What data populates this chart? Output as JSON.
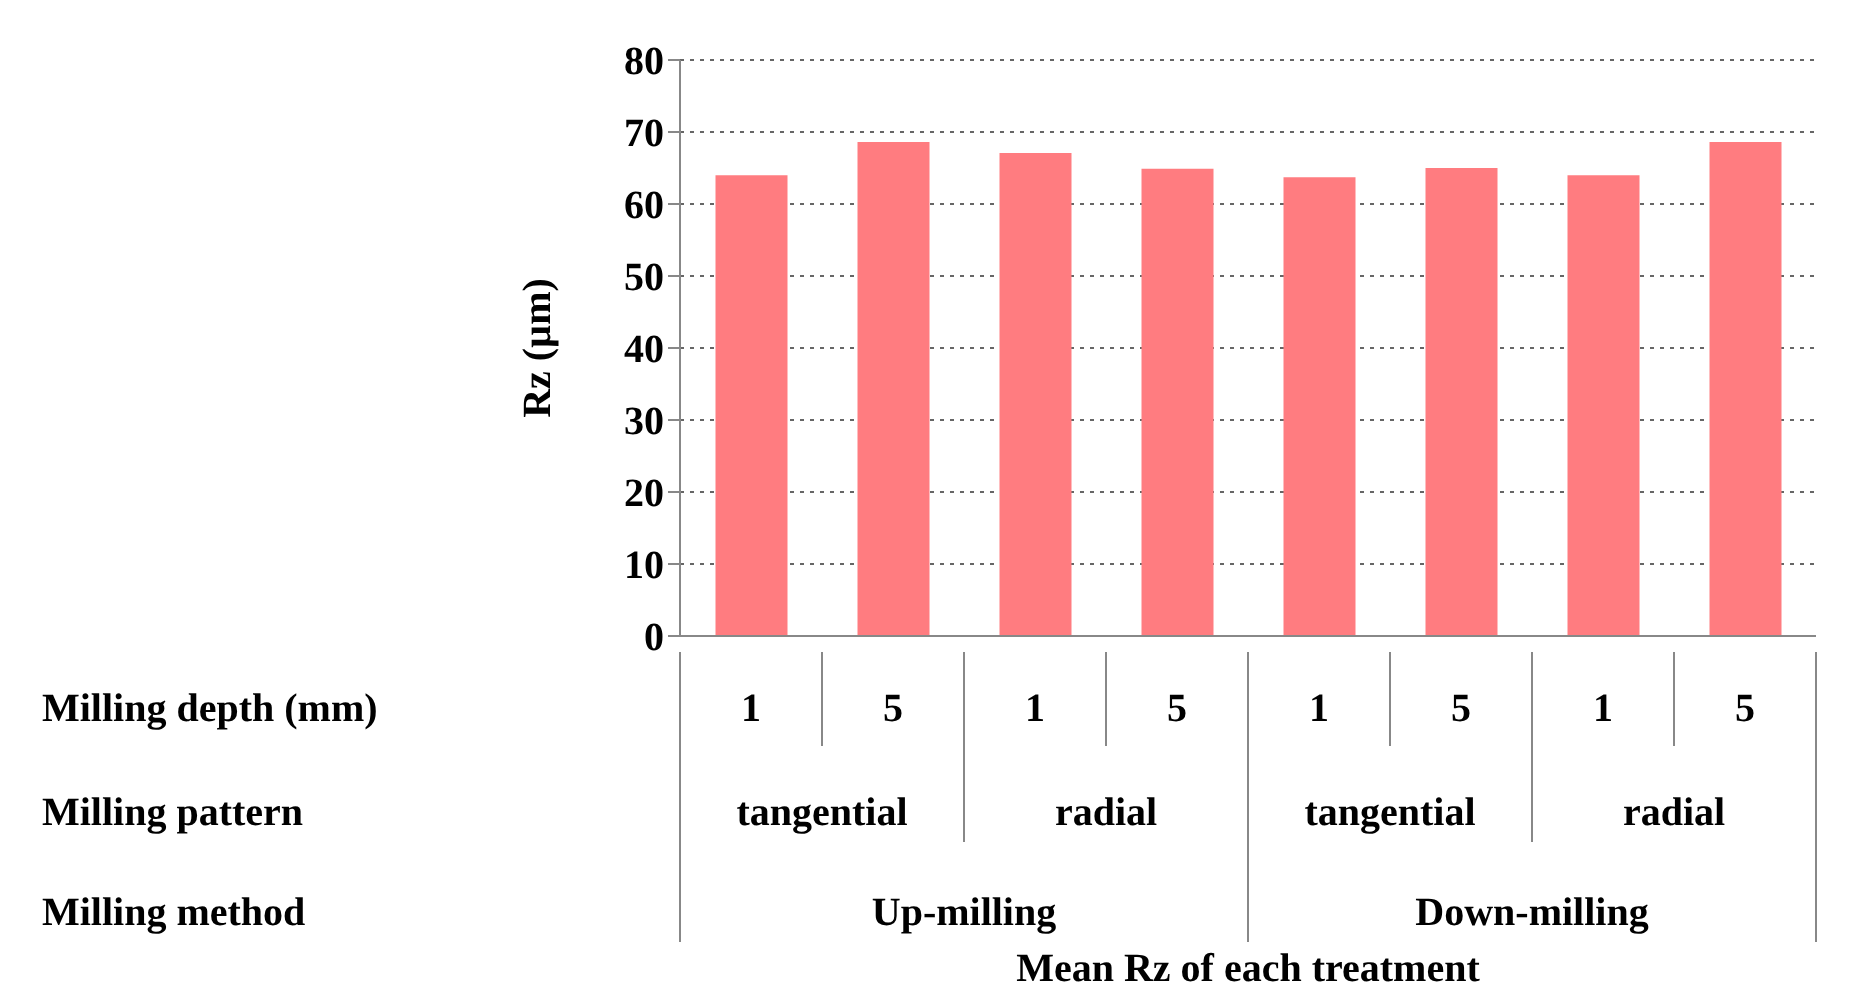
{
  "chart_data": {
    "type": "bar",
    "ylabel": "Rz (µm)",
    "categories": [
      "1",
      "5",
      "1",
      "5",
      "1",
      "5",
      "1",
      "5"
    ],
    "values": [
      64.0,
      68.6,
      67.1,
      64.9,
      63.7,
      65.0,
      64.0,
      68.6
    ],
    "color": "#ff7c80",
    "ylim": [
      0,
      80
    ],
    "yticks": [
      0,
      10,
      20,
      30,
      40,
      50,
      60,
      70,
      80
    ],
    "grid": "y",
    "annotations": [
      "Milling depth (mm)",
      "Milling pattern",
      "Milling method",
      "tangential",
      "radial",
      "tangential",
      "radial",
      "Up-milling",
      "Down-milling",
      "Mean Rz of each treatment"
    ]
  }
}
